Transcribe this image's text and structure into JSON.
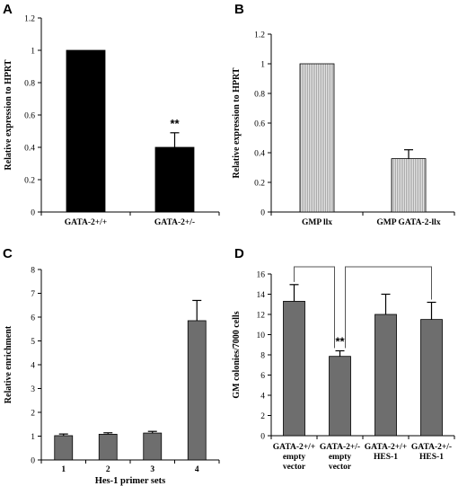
{
  "chart_data": [
    {
      "panel": "A",
      "type": "bar",
      "categories": [
        "GATA-2+/+",
        "GATA-2+/-"
      ],
      "values": [
        1.0,
        0.4
      ],
      "errors": [
        0,
        0.09
      ],
      "annotations": [
        "",
        "**"
      ],
      "ylabel": "Relative expression to HPRT",
      "xlabel": "",
      "ylim": [
        0,
        1.2
      ],
      "yticks": [
        "0",
        "0.2",
        "0.4",
        "0.6",
        "0.8",
        "1",
        "1.2"
      ],
      "bar_color": "#000000",
      "bar_pattern": "solid"
    },
    {
      "panel": "B",
      "type": "bar",
      "categories": [
        "GMP llx",
        "GMP GATA-2-llx"
      ],
      "values": [
        1.0,
        0.36
      ],
      "errors": [
        0,
        0.06
      ],
      "annotations": [
        "",
        ""
      ],
      "ylabel": "Relative expression to HPRT",
      "xlabel": "",
      "ylim": [
        0,
        1.2
      ],
      "yticks": [
        "0",
        "0.2",
        "0.4",
        "0.6",
        "0.8",
        "1",
        "1.2"
      ],
      "bar_color": "#c8c8c8",
      "bar_pattern": "vertical-stripes"
    },
    {
      "panel": "C",
      "type": "bar",
      "categories": [
        "1",
        "2",
        "3",
        "4"
      ],
      "values": [
        1.02,
        1.08,
        1.13,
        5.85
      ],
      "errors": [
        0.07,
        0.06,
        0.07,
        0.85
      ],
      "annotations": [
        "",
        "",
        "",
        ""
      ],
      "ylabel": "Relative enrichment",
      "xlabel": "Hes-1 primer sets",
      "ylim": [
        0,
        8
      ],
      "yticks": [
        "0",
        "1",
        "2",
        "3",
        "4",
        "5",
        "6",
        "7",
        "8"
      ],
      "bar_color": "#6e6e6e",
      "bar_pattern": "solid"
    },
    {
      "panel": "D",
      "type": "bar",
      "categories": [
        [
          "GATA-2+/+",
          "empty",
          "vector"
        ],
        [
          "GATA-2+/-",
          "empty",
          "vector"
        ],
        [
          "GATA-2+/+",
          "HES-1"
        ],
        [
          "GATA-2+/-",
          "HES-1"
        ]
      ],
      "values": [
        13.3,
        7.85,
        12.0,
        11.5
      ],
      "errors": [
        1.65,
        0.55,
        2.0,
        1.7
      ],
      "annotations": [
        "",
        "**",
        "",
        ""
      ],
      "comparison_brackets": [
        [
          0,
          1
        ],
        [
          1,
          3
        ]
      ],
      "ylabel": "GM colonies/7000 cells",
      "xlabel": "",
      "ylim": [
        0,
        16
      ],
      "yticks": [
        "0",
        "2",
        "4",
        "6",
        "8",
        "10",
        "12",
        "14",
        "16"
      ],
      "bar_color": "#6e6e6e",
      "bar_pattern": "solid"
    }
  ]
}
